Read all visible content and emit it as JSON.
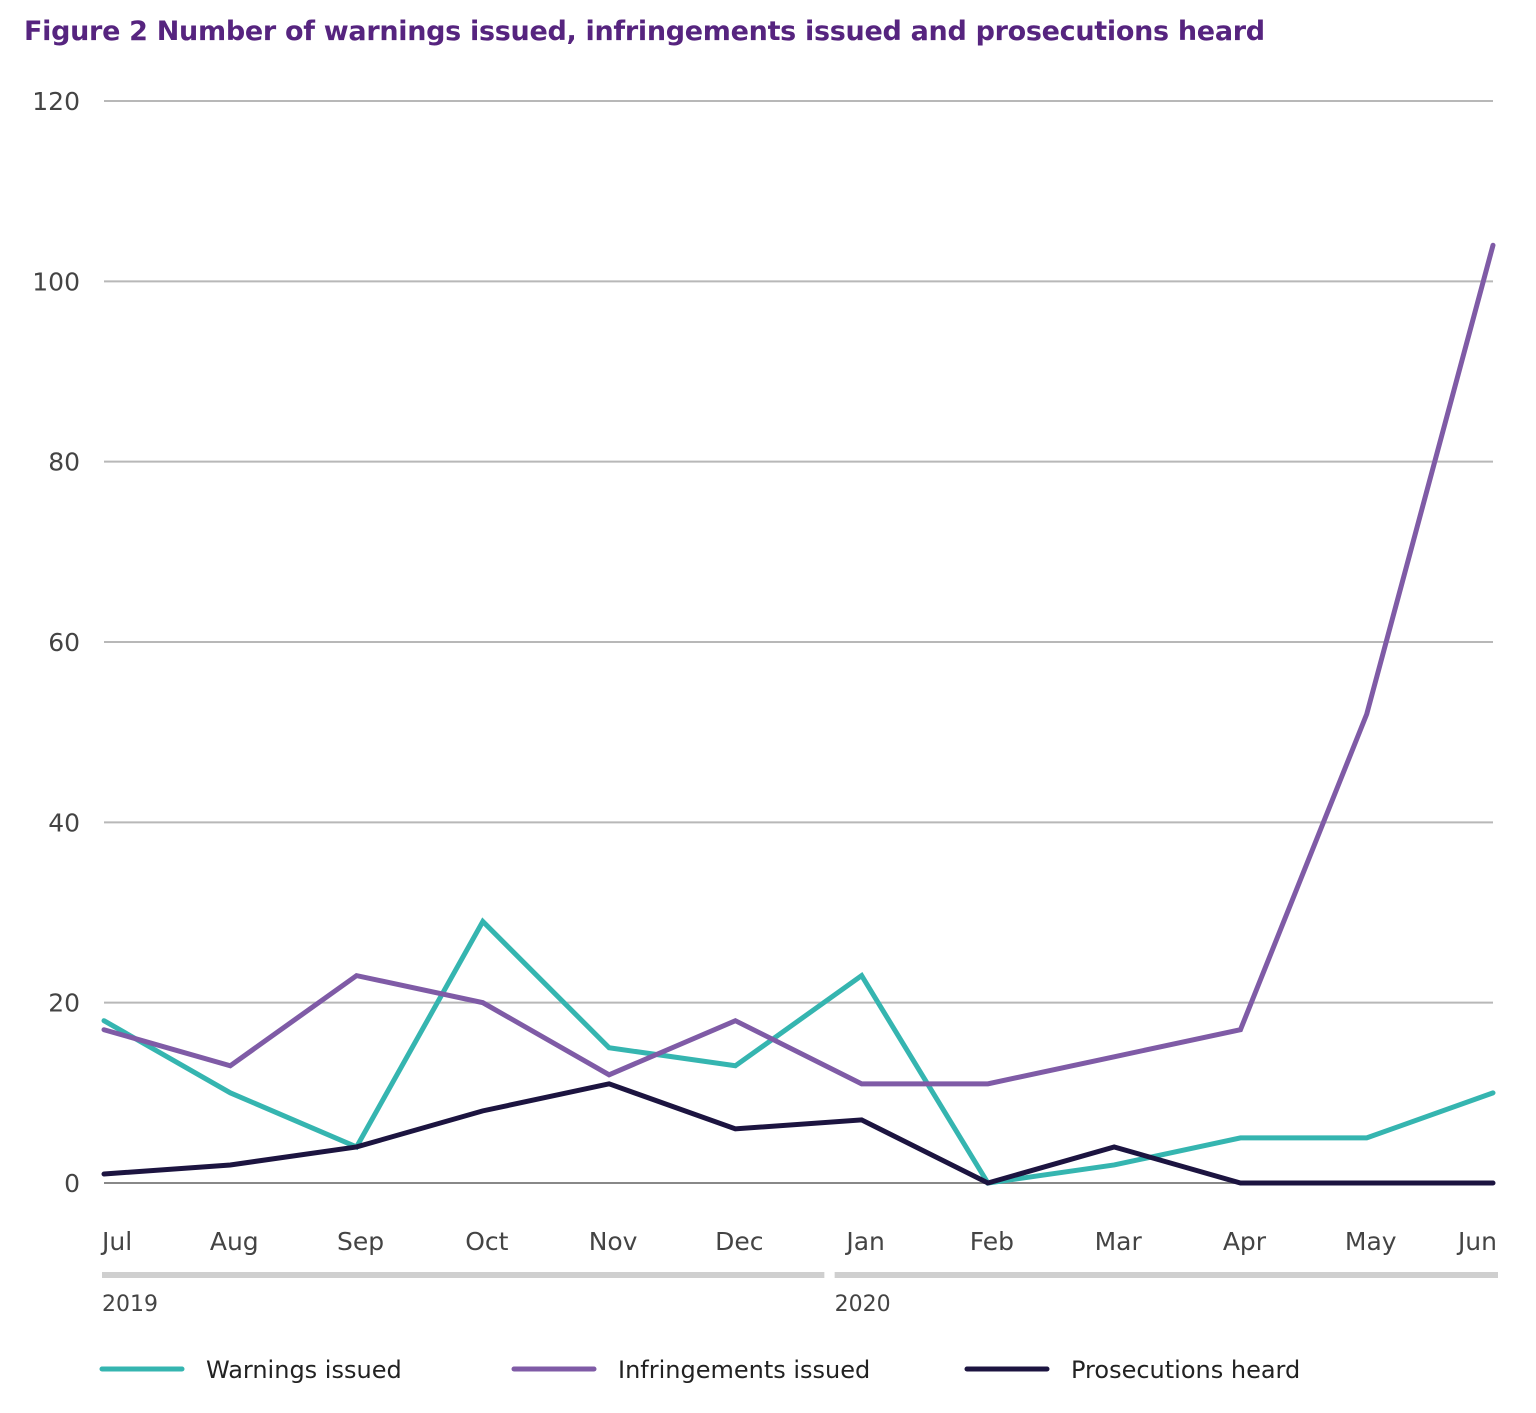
{
  "title": "Figure 2 Number of warnings issued, infringements issued and prosecutions heard",
  "chart_data": {
    "type": "line",
    "title": "Figure 2 Number of warnings issued, infringements issued and prosecutions heard",
    "xlabel": "",
    "ylabel": "",
    "categories": [
      "Jul",
      "Aug",
      "Sep",
      "Oct",
      "Nov",
      "Dec",
      "Jan",
      "Feb",
      "Mar",
      "Apr",
      "May",
      "Jun"
    ],
    "year_groups": [
      {
        "label": "2019",
        "months": [
          "Jul",
          "Aug",
          "Sep",
          "Oct",
          "Nov",
          "Dec"
        ]
      },
      {
        "label": "2020",
        "months": [
          "Jan",
          "Feb",
          "Mar",
          "Apr",
          "May",
          "Jun"
        ]
      }
    ],
    "ylim": [
      0,
      120
    ],
    "yticks": [
      "0",
      "20",
      "40",
      "60",
      "80",
      "100",
      "120"
    ],
    "grid": true,
    "legend_position": "bottom",
    "series": [
      {
        "name": "Warnings issued",
        "color": "#35b5b0",
        "values": [
          18,
          10,
          4,
          29,
          15,
          13,
          23,
          0,
          2,
          5,
          5,
          10
        ]
      },
      {
        "name": "Infringements issued",
        "color": "#7f5ba6",
        "values": [
          17,
          13,
          23,
          20,
          12,
          18,
          11,
          11,
          14,
          17,
          52,
          104
        ]
      },
      {
        "name": "Prosecutions heard",
        "color": "#1c1440",
        "values": [
          1,
          2,
          4,
          8,
          11,
          6,
          7,
          0,
          4,
          0,
          0,
          0
        ]
      }
    ]
  }
}
